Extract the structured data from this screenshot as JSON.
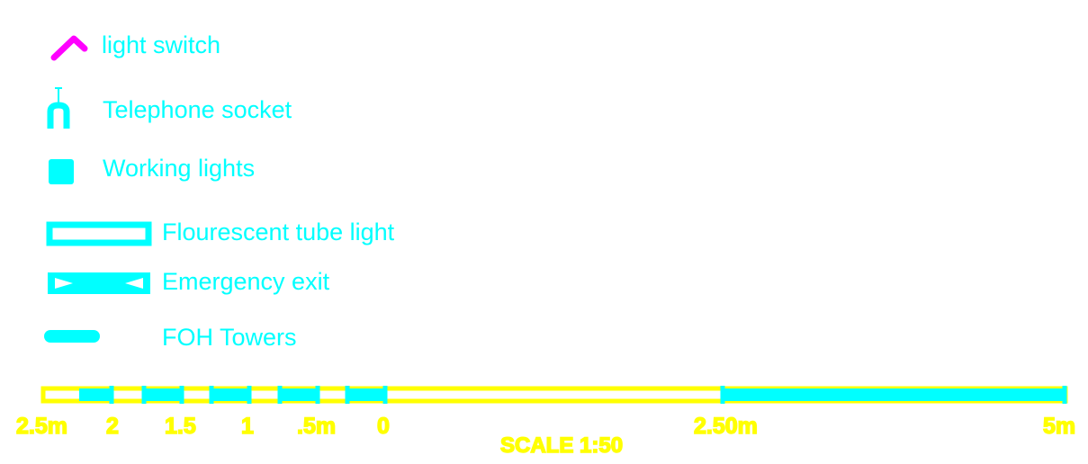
{
  "colors": {
    "legend_text": "#00ffff",
    "switch_symbol": "#ff00ff",
    "scale_bar": "#ffff00",
    "scale_fill": "#00ffff",
    "background": "#ffffff"
  },
  "legend": {
    "items": [
      {
        "label": "light switch",
        "icon": "light-switch-icon"
      },
      {
        "label": "Telephone socket",
        "icon": "telephone-socket-icon"
      },
      {
        "label": "Working lights",
        "icon": "working-light-icon"
      },
      {
        "label": "Flourescent tube light",
        "icon": "fluorescent-tube-icon"
      },
      {
        "label": "Emergency exit",
        "icon": "emergency-exit-icon"
      },
      {
        "label": "FOH Towers",
        "icon": "foh-tower-icon"
      }
    ]
  },
  "scale": {
    "title": "SCALE 1:50",
    "ticks": [
      "2.5m",
      "2",
      "1.5",
      "1",
      ".5m",
      "0",
      "2.50m",
      "5m"
    ]
  }
}
